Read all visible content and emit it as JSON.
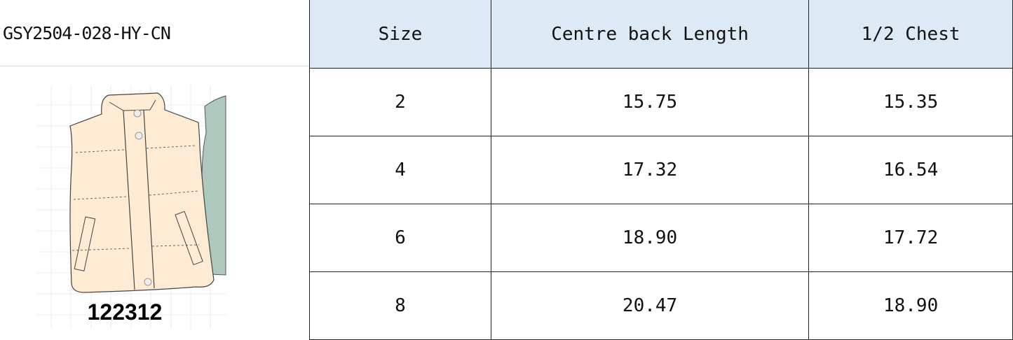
{
  "style_code": "GSY2504-028-HY-CN",
  "product_image": {
    "label": "122312",
    "colors": {
      "main": "#fdecd3",
      "secondary": "#aec8bd"
    }
  },
  "table": {
    "headers": [
      "Size",
      "Centre back Length",
      "1/2 Chest"
    ],
    "rows": [
      [
        "2",
        "15.75",
        "15.35"
      ],
      [
        "4",
        "17.32",
        "16.54"
      ],
      [
        "6",
        "18.90",
        "17.72"
      ],
      [
        "8",
        "20.47",
        "18.90"
      ]
    ],
    "header_bg": "#dde9f5"
  }
}
